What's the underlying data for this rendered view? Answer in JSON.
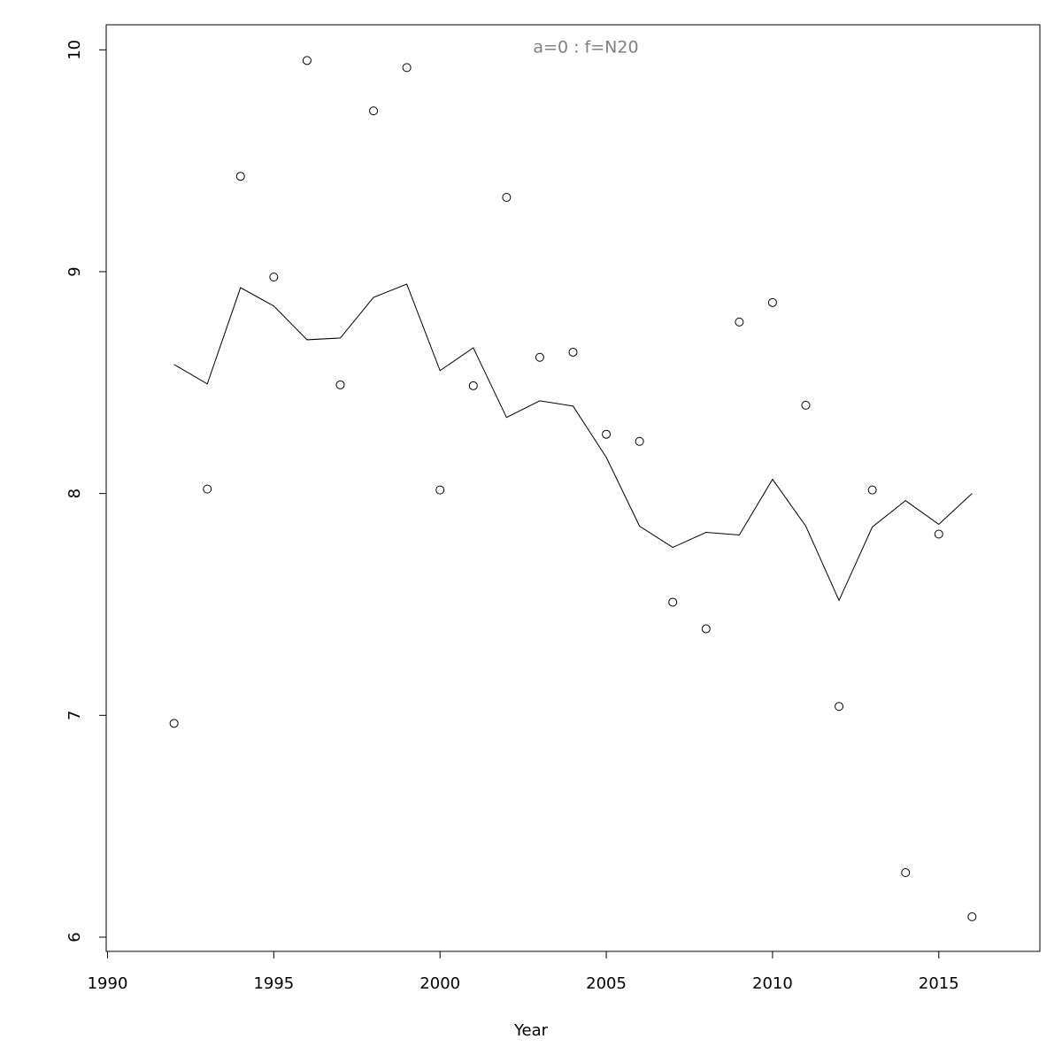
{
  "chart_data": {
    "type": "line",
    "title": "a=0  :  f=N20",
    "x_label": "Year",
    "x": [
      1992,
      1993,
      1994,
      1995,
      1996,
      1997,
      1998,
      1999,
      2000,
      2001,
      2002,
      2003,
      2004,
      2005,
      2006,
      2007,
      2008,
      2009,
      2010,
      2011,
      2012,
      2013,
      2014,
      2015,
      2016
    ],
    "series": [
      {
        "style": "points",
        "color": "#000000",
        "values": [
          6.964,
          8.02,
          9.43,
          8.976,
          9.952,
          8.49,
          9.725,
          9.92,
          8.016,
          8.486,
          9.335,
          8.614,
          8.637,
          8.267,
          8.235,
          7.51,
          7.39,
          8.773,
          8.861,
          8.398,
          7.04,
          8.016,
          6.291,
          7.817,
          6.092
        ]
      },
      {
        "style": "line",
        "color": "#000000",
        "values": [
          8.582,
          8.494,
          8.928,
          8.845,
          8.693,
          8.701,
          8.884,
          8.944,
          8.554,
          8.657,
          8.343,
          8.418,
          8.394,
          8.163,
          7.853,
          7.757,
          7.825,
          7.813,
          8.064,
          7.853,
          7.518,
          7.849,
          7.968,
          7.861,
          8.0
        ]
      }
    ],
    "xlim": [
      1989.96,
      2018.04
    ],
    "xticks": [
      1990,
      1995,
      2000,
      2005,
      2010,
      2015
    ],
    "ylim": [
      5.936,
      10.113
    ],
    "yticks": [
      6,
      7,
      8,
      9,
      10
    ],
    "grid": false
  }
}
